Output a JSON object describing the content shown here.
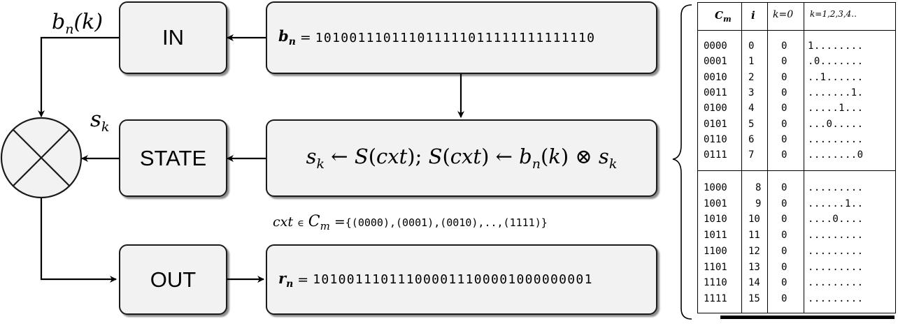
{
  "boxes": {
    "in_label": "IN",
    "state_label": "STATE",
    "out_label": "OUT"
  },
  "input_box": {
    "variable": "b",
    "subscript": "n",
    "equals": "=",
    "sequence": "101001110111011111011111111111110"
  },
  "state_box": {
    "expression_parts": [
      "s",
      "k",
      " ← ",
      "S",
      "(",
      "cxt",
      ");  ",
      "S",
      "(",
      "cxt",
      ") ← ",
      "b",
      "n",
      "(",
      "k",
      ") ⊗ ",
      "s",
      "k"
    ]
  },
  "output_box": {
    "variable": "r",
    "subscript": "n",
    "equals": "=",
    "sequence": "101001110111000011100001000000001"
  },
  "labels": {
    "bn_main": "b",
    "bn_sub": "n",
    "bn_arg": "(k)",
    "sk_main": "s",
    "sk_sub": "k"
  },
  "context": {
    "var": "cxt",
    "in": "∈",
    "set_main": "C",
    "set_sub": "m",
    "equals": "=",
    "set": "{(0000),(0001),(0010),..,(1111)}"
  },
  "table": {
    "headers": {
      "cm_main": "C",
      "cm_sub": "m",
      "i": "i",
      "k0": "k=0",
      "k_rest": "k=1,2,3,4.."
    },
    "rows": [
      {
        "cm": "0000",
        "i": "0",
        "k0": "0",
        "seq": "1........"
      },
      {
        "cm": "0001",
        "i": "1",
        "k0": "0",
        "seq": ".0......."
      },
      {
        "cm": "0010",
        "i": "2",
        "k0": "0",
        "seq": "..1......"
      },
      {
        "cm": "0011",
        "i": "3",
        "k0": "0",
        "seq": ".......1."
      },
      {
        "cm": "0100",
        "i": "4",
        "k0": "0",
        "seq": ".....1..."
      },
      {
        "cm": "0101",
        "i": "5",
        "k0": "0",
        "seq": "...0....."
      },
      {
        "cm": "0110",
        "i": "6",
        "k0": "0",
        "seq": "........."
      },
      {
        "cm": "0111",
        "i": "7",
        "k0": "0",
        "seq": "........0"
      },
      {
        "cm": "1000",
        "i": "8",
        "k0": "0",
        "seq": "........."
      },
      {
        "cm": "1001",
        "i": "9",
        "k0": "0",
        "seq": "......1.."
      },
      {
        "cm": "1010",
        "i": "10",
        "k0": "0",
        "seq": "....0...."
      },
      {
        "cm": "1011",
        "i": "11",
        "k0": "0",
        "seq": "........."
      },
      {
        "cm": "1100",
        "i": "12",
        "k0": "0",
        "seq": "........."
      },
      {
        "cm": "1101",
        "i": "13",
        "k0": "0",
        "seq": "........."
      },
      {
        "cm": "1110",
        "i": "14",
        "k0": "0",
        "seq": "........."
      },
      {
        "cm": "1111",
        "i": "15",
        "k0": "0",
        "seq": "........."
      }
    ]
  },
  "colors": {
    "box_fill": "#f2f2f2",
    "stroke": "#1a1a1a"
  }
}
